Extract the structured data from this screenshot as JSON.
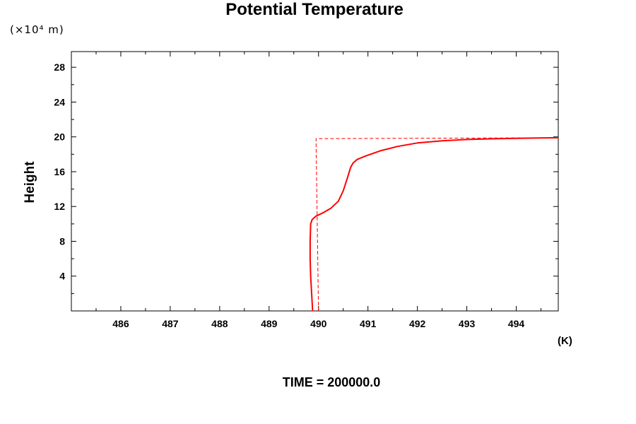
{
  "chart_data": {
    "type": "line",
    "title": "Potential Temperature",
    "ylabel": "Height",
    "yunit": "(×10⁴ m)",
    "xunit": "(K)",
    "footer": "TIME = 200000.0",
    "xlim": [
      485.0,
      494.85
    ],
    "ylim": [
      0,
      29.8
    ],
    "xticks": [
      486,
      487,
      488,
      489,
      490,
      491,
      492,
      493,
      494
    ],
    "yticks": [
      4,
      8,
      12,
      16,
      20,
      24,
      28
    ],
    "grid": false,
    "legend": "none",
    "series": [
      {
        "style": "solid",
        "color": "#ff0000",
        "x": [
          489.88,
          489.86,
          489.84,
          489.83,
          489.83,
          489.84,
          489.87,
          489.95,
          490.1,
          490.25,
          490.4,
          490.5,
          490.58,
          490.65,
          490.7,
          490.78,
          490.95,
          491.25,
          491.6,
          492.0,
          492.5,
          493.0,
          493.6,
          494.2,
          494.85
        ],
        "y": [
          0,
          2,
          4,
          6,
          8,
          10,
          10.5,
          10.9,
          11.3,
          11.8,
          12.6,
          13.8,
          15.2,
          16.5,
          17.0,
          17.4,
          17.8,
          18.4,
          18.9,
          19.3,
          19.55,
          19.7,
          19.8,
          19.85,
          19.9
        ]
      },
      {
        "style": "dashed",
        "color": "#ff0000",
        "x": [
          490.0,
          489.95,
          494.85
        ],
        "y": [
          0,
          19.8,
          19.9
        ]
      }
    ]
  }
}
